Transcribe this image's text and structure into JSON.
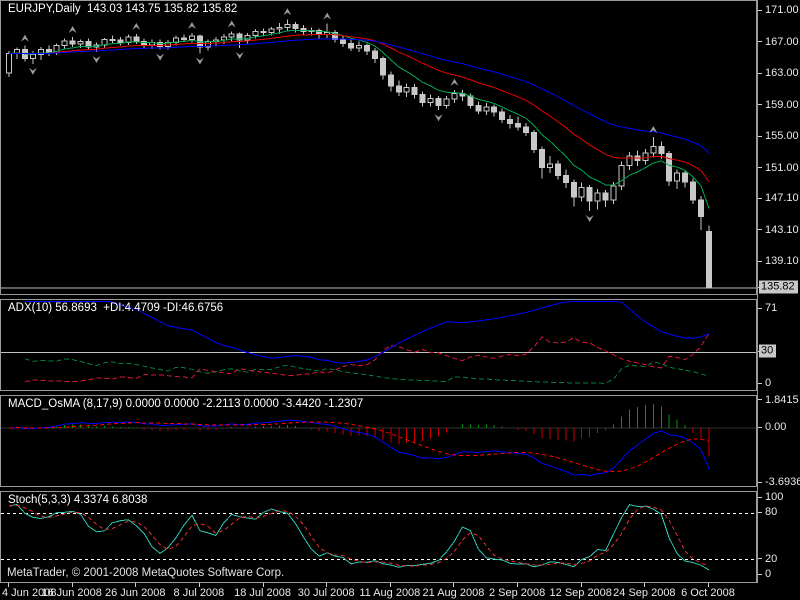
{
  "app": {
    "name": "MetaTrader",
    "copyright": "MetaTrader, © 2001-2008 MetaQuotes Software Corp."
  },
  "main_chart": {
    "title": "EURJPY,Daily  143.03 143.75 135.82 135.82",
    "symbol": "EURJPY",
    "timeframe": "Daily",
    "ohlc_readout": {
      "open": "143.03",
      "high": "143.75",
      "low": "135.82",
      "close": "135.82"
    },
    "current_price_label": "135.82"
  },
  "panels": {
    "adx": {
      "label": "ADX(10) 56.8693  +DI:4.4709 -DI:46.6756"
    },
    "macd": {
      "label": "MACD_OsMA (8,17,9) 0.0000 0.0000 -2.2113 0.0000 -3.4420 -1.2307"
    },
    "stoch": {
      "label": "Stoch(5,3,3) 4.3374 6.8038"
    }
  },
  "colors": {
    "background": "#000000",
    "panel_border": "#9a9a9a",
    "candle": "#c8c8c8",
    "ma_fast_green": "#00a94f",
    "ma_mid_red": "#e80000",
    "ma_slow_blue": "#0000ff",
    "fractal_gray": "#9c9c9c",
    "adx_main": "#0000ff",
    "adx_plus_di": "#00803c",
    "adx_minus_di": "#dc143c",
    "macd_line": "#0000ff",
    "macd_signal": "#ff0000",
    "hist_positive": "#009900",
    "hist_negative": "#cc0000",
    "stoch_k": "#2cc8b4",
    "stoch_d": "#e03030",
    "level_line": "#c0c0c0",
    "axis_text": "#e8e8e8",
    "price_box_bg": "#c8c8c8"
  },
  "chart_data": [
    {
      "type": "candlestick",
      "title": "EURJPY,Daily",
      "last_bar": {
        "open": 143.03,
        "high": 143.75,
        "low": 135.82,
        "close": 135.82
      },
      "current_price": {
        "v": 135.82,
        "label": "135.82"
      },
      "ylim": [
        134.8,
        172.3
      ],
      "y_ticks": [
        {
          "v": 171.0,
          "label": "171.00"
        },
        {
          "v": 167.0,
          "label": "167.00"
        },
        {
          "v": 163.0,
          "label": "163.00"
        },
        {
          "v": 159.0,
          "label": "159.00"
        },
        {
          "v": 155.0,
          "label": "155.00"
        },
        {
          "v": 151.0,
          "label": "151.00"
        },
        {
          "v": 147.1,
          "label": "147.10"
        },
        {
          "v": 143.1,
          "label": "143.10"
        },
        {
          "v": 139.1,
          "label": "139.10"
        }
      ],
      "x_labels": [
        "4 Jun 2008",
        "16 Jun 2008",
        "26 Jun 2008",
        "8 Jul 2008",
        "18 Jul 2008",
        "30 Jul 2008",
        "11 Aug 2008",
        "21 Aug 2008",
        "2 Sep 2008",
        "12 Sep 2008",
        "24 Sep 2008",
        "6 Oct 2008"
      ],
      "x_label_bar_indices": [
        0,
        8,
        16,
        24,
        32,
        40,
        48,
        56,
        64,
        72,
        80,
        88
      ],
      "overlays": [
        {
          "name": "ma-fast",
          "type": "ema",
          "period": 8,
          "color": "#00a94f"
        },
        {
          "name": "ma-mid",
          "type": "ema",
          "period": 20,
          "color": "#e80000"
        },
        {
          "name": "ma-slow",
          "type": "ema",
          "period": 40,
          "color": "#0000ff"
        }
      ],
      "fractals": {
        "enabled": true,
        "color": "#9c9c9c"
      },
      "bars": [
        [
          163.1,
          165.95,
          162.6,
          165.6
        ],
        [
          165.6,
          166.35,
          164.9,
          166.1
        ],
        [
          166.1,
          166.6,
          164.6,
          165.0
        ],
        [
          165.0,
          165.9,
          164.3,
          165.5
        ],
        [
          165.5,
          166.4,
          164.8,
          166.1
        ],
        [
          166.1,
          166.6,
          165.3,
          165.7
        ],
        [
          165.7,
          166.9,
          165.4,
          166.6
        ],
        [
          166.6,
          167.5,
          166.2,
          167.2
        ],
        [
          167.2,
          167.7,
          166.4,
          166.8
        ],
        [
          166.8,
          167.4,
          166.3,
          167.1
        ],
        [
          167.1,
          167.5,
          166.1,
          166.4
        ],
        [
          166.4,
          167.0,
          165.8,
          166.7
        ],
        [
          166.7,
          167.6,
          166.3,
          167.4
        ],
        [
          167.4,
          167.9,
          166.9,
          167.3
        ],
        [
          167.3,
          167.7,
          166.6,
          167.0
        ],
        [
          167.0,
          168.0,
          166.7,
          167.7
        ],
        [
          167.7,
          168.1,
          166.8,
          167.1
        ],
        [
          167.1,
          167.5,
          166.3,
          166.7
        ],
        [
          166.7,
          167.4,
          166.2,
          167.0
        ],
        [
          167.0,
          167.4,
          166.1,
          166.5
        ],
        [
          166.5,
          167.3,
          166.1,
          167.0
        ],
        [
          167.0,
          167.9,
          166.6,
          167.6
        ],
        [
          167.6,
          168.0,
          167.1,
          167.4
        ],
        [
          167.4,
          168.2,
          166.9,
          167.8
        ],
        [
          167.8,
          168.0,
          165.6,
          166.4
        ],
        [
          166.4,
          167.4,
          166.0,
          167.1
        ],
        [
          167.1,
          167.7,
          166.5,
          167.3
        ],
        [
          167.3,
          168.1,
          166.8,
          167.7
        ],
        [
          167.7,
          168.4,
          167.2,
          168.1
        ],
        [
          168.1,
          168.3,
          166.3,
          167.3
        ],
        [
          167.3,
          168.2,
          166.8,
          167.9
        ],
        [
          167.9,
          168.7,
          167.5,
          168.4
        ],
        [
          168.4,
          168.8,
          167.8,
          168.3
        ],
        [
          168.3,
          169.0,
          167.9,
          168.7
        ],
        [
          168.7,
          169.5,
          168.1,
          168.9
        ],
        [
          168.9,
          169.95,
          168.4,
          169.3
        ],
        [
          169.3,
          169.6,
          168.3,
          168.8
        ],
        [
          168.8,
          169.2,
          168.0,
          168.4
        ],
        [
          168.4,
          168.9,
          167.9,
          168.5
        ],
        [
          168.5,
          168.8,
          167.5,
          168.0
        ],
        [
          168.0,
          169.4,
          167.6,
          168.3
        ],
        [
          168.3,
          168.6,
          167.0,
          167.4
        ],
        [
          167.4,
          167.8,
          166.4,
          166.9
        ],
        [
          166.9,
          167.3,
          165.9,
          166.3
        ],
        [
          166.3,
          167.1,
          165.8,
          166.6
        ],
        [
          166.6,
          166.9,
          165.4,
          165.9
        ],
        [
          165.9,
          166.3,
          164.4,
          165.0
        ],
        [
          165.0,
          165.2,
          162.3,
          162.9
        ],
        [
          162.9,
          163.3,
          160.8,
          161.5
        ],
        [
          161.5,
          162.2,
          160.2,
          160.7
        ],
        [
          160.7,
          161.8,
          160.1,
          161.3
        ],
        [
          161.3,
          161.7,
          159.9,
          160.4
        ],
        [
          160.4,
          160.8,
          158.9,
          159.4
        ],
        [
          159.4,
          160.4,
          158.9,
          159.9
        ],
        [
          159.9,
          160.2,
          158.4,
          159.0
        ],
        [
          159.0,
          160.2,
          158.6,
          159.8
        ],
        [
          159.8,
          161.0,
          159.3,
          160.5
        ],
        [
          160.5,
          161.0,
          159.6,
          160.2
        ],
        [
          160.2,
          160.5,
          158.6,
          159.0
        ],
        [
          159.0,
          159.5,
          157.9,
          158.3
        ],
        [
          158.3,
          159.3,
          157.8,
          158.8
        ],
        [
          158.8,
          159.1,
          157.6,
          158.2
        ],
        [
          158.2,
          158.6,
          156.8,
          157.2
        ],
        [
          157.2,
          157.8,
          156.1,
          156.7
        ],
        [
          156.7,
          157.6,
          155.8,
          156.3
        ],
        [
          156.3,
          156.8,
          155.1,
          155.6
        ],
        [
          155.6,
          155.9,
          153.0,
          153.4
        ],
        [
          153.4,
          153.8,
          149.7,
          151.1
        ],
        [
          151.1,
          152.6,
          150.4,
          151.6
        ],
        [
          151.6,
          152.0,
          149.6,
          150.1
        ],
        [
          150.1,
          150.9,
          148.5,
          149.2
        ],
        [
          149.2,
          149.6,
          146.2,
          147.4
        ],
        [
          147.4,
          149.2,
          146.8,
          148.6
        ],
        [
          148.6,
          148.9,
          145.6,
          146.9
        ],
        [
          146.9,
          148.4,
          145.8,
          147.9
        ],
        [
          147.9,
          148.3,
          146.1,
          147.0
        ],
        [
          147.0,
          149.3,
          146.5,
          148.8
        ],
        [
          148.8,
          151.9,
          148.3,
          151.4
        ],
        [
          151.4,
          153.1,
          150.8,
          152.6
        ],
        [
          152.6,
          153.3,
          151.3,
          152.0
        ],
        [
          152.0,
          153.5,
          151.5,
          153.0
        ],
        [
          153.0,
          155.0,
          152.4,
          153.8
        ],
        [
          153.8,
          154.4,
          152.3,
          152.9
        ],
        [
          152.9,
          153.2,
          148.8,
          149.4
        ],
        [
          149.4,
          150.9,
          148.4,
          150.4
        ],
        [
          150.4,
          150.8,
          148.6,
          149.3
        ],
        [
          149.3,
          149.7,
          146.5,
          147.0
        ],
        [
          147.0,
          147.5,
          143.2,
          144.9
        ],
        [
          143.03,
          143.75,
          135.82,
          135.82
        ]
      ]
    },
    {
      "type": "line",
      "name": "ADX",
      "params": [
        10
      ],
      "derived_from": "bars",
      "current": {
        "adx": 56.8693,
        "plus_di": 4.4709,
        "minus_di": 46.6756
      },
      "ylim": [
        -2,
        78
      ],
      "level": 30,
      "y_ticks": [
        {
          "v": 71,
          "label": "71"
        },
        {
          "v": 30,
          "label": "30",
          "boxed": true
        },
        {
          "v": 0,
          "label": "0"
        }
      ],
      "series_styles": [
        {
          "name": "ADX",
          "color": "#0000ff",
          "dash": null
        },
        {
          "name": "+DI",
          "color": "#00803c",
          "dash": "5 3"
        },
        {
          "name": "-DI",
          "color": "#dc143c",
          "dash": "5 3"
        }
      ]
    },
    {
      "type": "macd_osma",
      "name": "MACD_OsMA",
      "params": [
        8,
        17,
        9
      ],
      "derived_from": "bars",
      "current": [
        "0.0000",
        "0.0000",
        "-2.2113",
        "0.0000",
        "-3.4420",
        "-1.2307"
      ],
      "ylim": [
        -4.0,
        2.2
      ],
      "y_ticks": [
        {
          "v": 1.8415,
          "label": "1.8415"
        },
        {
          "v": 0,
          "label": "0.00"
        },
        {
          "v": -3.6936,
          "label": "-3.6936"
        }
      ],
      "series_styles": [
        {
          "name": "MACD",
          "color": "#0000ff",
          "dash": null
        },
        {
          "name": "Signal",
          "color": "#ff0000",
          "dash": "4 3"
        },
        {
          "name": "OsMA+",
          "color": "#009900"
        },
        {
          "name": "OsMA-",
          "color": "#cc0000"
        }
      ]
    },
    {
      "type": "stochastic",
      "name": "Stoch",
      "params": [
        5,
        3,
        3
      ],
      "derived_from": "bars",
      "current": {
        "k": 4.3374,
        "d": 6.8038
      },
      "ylim": [
        -12,
        108
      ],
      "levels": [
        20,
        80
      ],
      "y_ticks": [
        {
          "v": 100,
          "label": "100"
        },
        {
          "v": 80,
          "label": "80"
        },
        {
          "v": 20,
          "label": "20"
        },
        {
          "v": 0,
          "label": "0"
        }
      ],
      "series_styles": [
        {
          "name": "%K",
          "color": "#2cc8b4",
          "dash": null
        },
        {
          "name": "%D",
          "color": "#e03030",
          "dash": "4 3"
        }
      ]
    }
  ]
}
